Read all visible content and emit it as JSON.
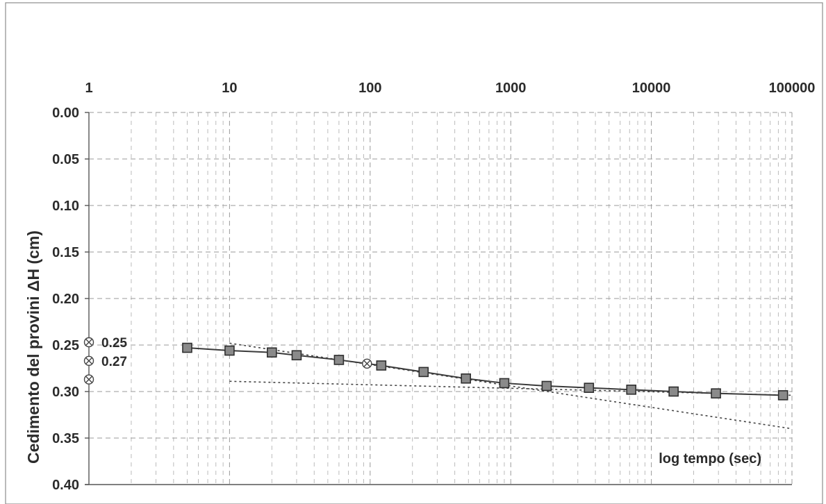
{
  "chart_data": {
    "type": "scatter",
    "title": "",
    "ylabel": "Cedimento del provini  ΔH (cm)",
    "xlabel": "log tempo (sec)",
    "x_scale": "log",
    "xlim": [
      1,
      100000
    ],
    "ylim": [
      0.0,
      0.4
    ],
    "y_inverted": true,
    "x_tick_labels": [
      "1",
      "10",
      "100",
      "1000",
      "10000",
      "100000"
    ],
    "x_tick_values": [
      1,
      10,
      100,
      1000,
      10000,
      100000
    ],
    "y_tick_labels": [
      "0.00",
      "0.05",
      "0.10",
      "0.15",
      "0.20",
      "0.25",
      "0.30",
      "0.35",
      "0.40"
    ],
    "y_tick_values": [
      0.0,
      0.05,
      0.1,
      0.15,
      0.2,
      0.25,
      0.3,
      0.35,
      0.4
    ],
    "grid": true,
    "series": [
      {
        "marker": "square",
        "color": "#8a8a8a",
        "x": [
          5,
          10,
          20,
          30,
          60,
          120,
          240,
          480,
          900,
          1800,
          3600,
          7200,
          14400,
          28800,
          86400
        ],
        "y": [
          0.253,
          0.256,
          0.258,
          0.261,
          0.266,
          0.272,
          0.279,
          0.286,
          0.291,
          0.294,
          0.296,
          0.298,
          0.3,
          0.302,
          0.304
        ]
      }
    ],
    "trend_lines": [
      {
        "style": "dotted",
        "x": [
          10,
          100000
        ],
        "y": [
          0.248,
          0.34
        ]
      },
      {
        "style": "dotted",
        "x": [
          10,
          100000
        ],
        "y": [
          0.289,
          0.304
        ]
      }
    ],
    "point_marker": {
      "marker": "circled-x",
      "x": 95,
      "y": 0.27
    },
    "annotations": [
      {
        "label": "0.25",
        "y": 0.25,
        "marker": "circled-x"
      },
      {
        "label": "0.27",
        "y": 0.27,
        "marker": "circled-x"
      },
      {
        "label": "",
        "y": 0.29,
        "marker": "circled-x"
      }
    ]
  }
}
